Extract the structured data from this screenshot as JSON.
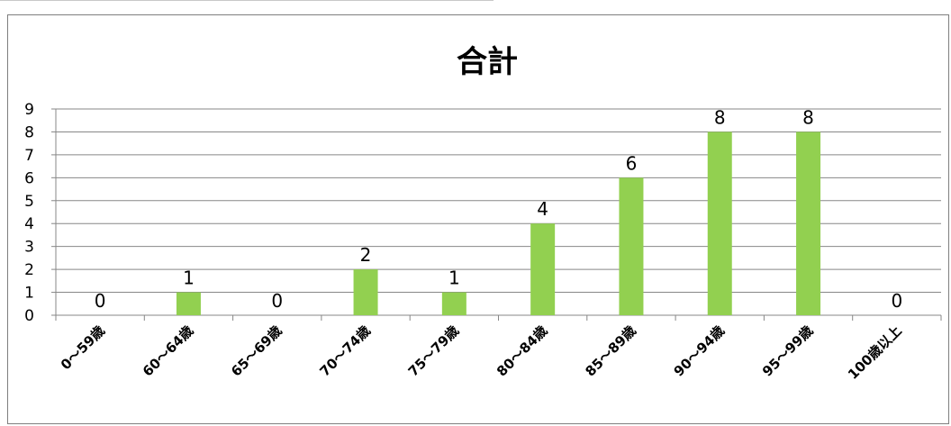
{
  "chart_data": {
    "type": "bar",
    "title": "合計",
    "categories": [
      "0～59歳",
      "60～64歳",
      "65～69歳",
      "70～74歳",
      "75～79歳",
      "80～84歳",
      "85～89歳",
      "90～94歳",
      "95～99歳",
      "100歳以上"
    ],
    "values": [
      0,
      1,
      0,
      2,
      1,
      4,
      6,
      8,
      8,
      0
    ],
    "ylim": [
      0,
      9
    ],
    "yticks": [
      0,
      1,
      2,
      3,
      4,
      5,
      6,
      7,
      8,
      9
    ],
    "grid": true,
    "legend": "none",
    "data_labels": true,
    "bar_color": "#92D050",
    "gridline_color": "#878787"
  }
}
